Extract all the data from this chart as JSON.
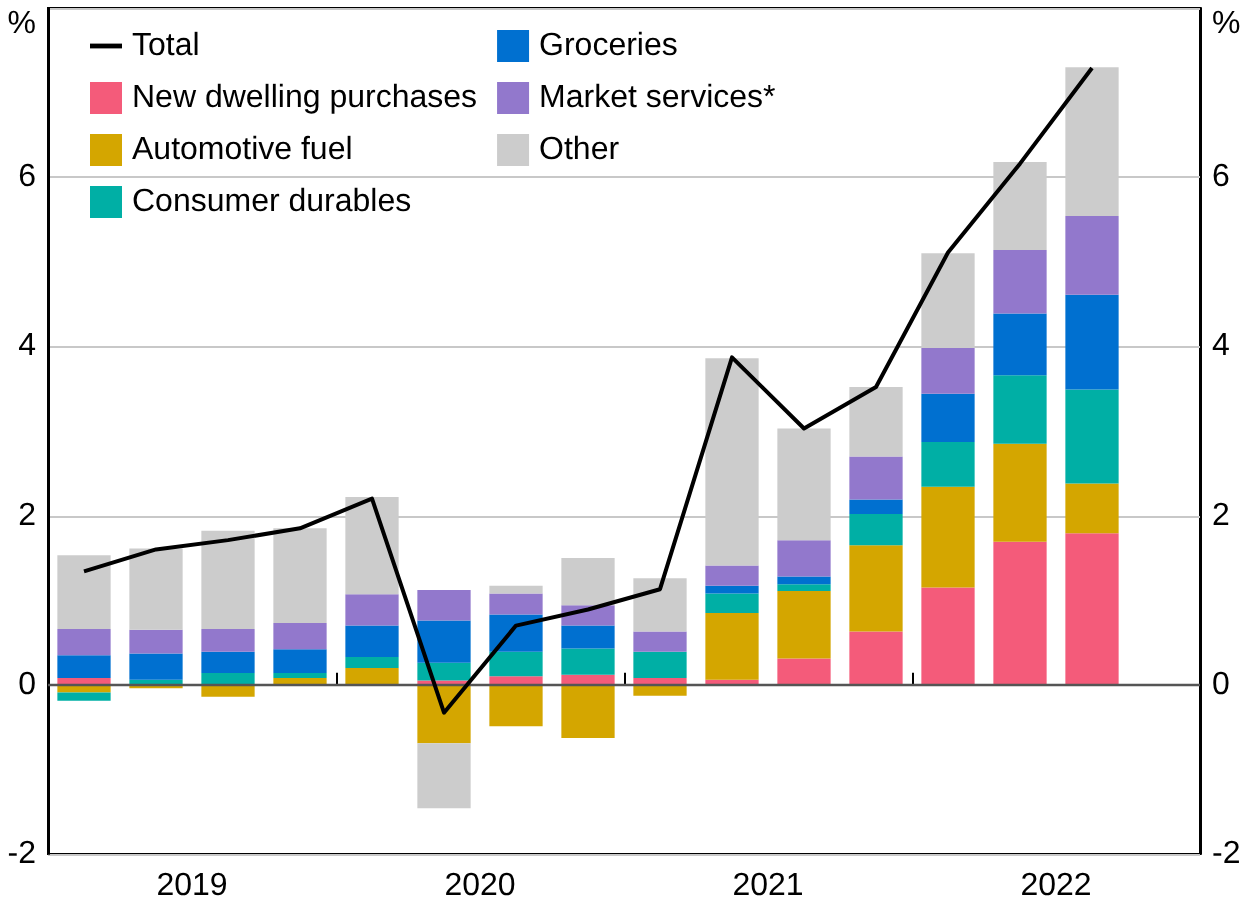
{
  "chart_data": {
    "type": "bar",
    "stacked": true,
    "ylabel": "%",
    "y2label": "%",
    "x": [
      2019.125,
      2019.375,
      2019.625,
      2019.875,
      2020.125,
      2020.375,
      2020.625,
      2020.875,
      2021.125,
      2021.375,
      2021.625,
      2021.875,
      2022.125,
      2022.375,
      2022.625
    ],
    "xlim": [
      2019,
      2023
    ],
    "xticks": [
      {
        "value": 2019,
        "label": null
      },
      {
        "value": 2019.5,
        "label": "2019"
      },
      {
        "value": 2020,
        "label": null
      },
      {
        "value": 2020.5,
        "label": "2020"
      },
      {
        "value": 2021,
        "label": null
      },
      {
        "value": 2021.5,
        "label": "2021"
      },
      {
        "value": 2022,
        "label": null
      },
      {
        "value": 2022.5,
        "label": "2022"
      },
      {
        "value": 2023,
        "label": null
      }
    ],
    "ylim": [
      -2,
      8
    ],
    "yticks": [
      -2,
      0,
      2,
      4,
      6
    ],
    "y2lim": [
      -2,
      8
    ],
    "y2ticks": [
      -2,
      0,
      2,
      4,
      6
    ],
    "series": [
      {
        "name": "Total",
        "type": "line",
        "color": "#000000",
        "values": [
          1.34,
          1.6,
          1.71,
          1.85,
          2.2,
          -0.33,
          0.7,
          0.89,
          1.13,
          3.87,
          3.03,
          3.52,
          5.11,
          6.16,
          7.29
        ]
      },
      {
        "name": "New dwelling purchases",
        "color": "#f45b7a",
        "values": [
          0.08,
          0,
          0,
          0,
          null,
          0.05,
          0.1,
          0.12,
          0.08,
          0.06,
          0.31,
          0.63,
          1.15,
          1.69,
          1.79
        ]
      },
      {
        "name": "Automotive fuel",
        "color": "#d4a600",
        "values": [
          -0.09,
          -0.04,
          -0.14,
          0.08,
          0.2,
          -0.69,
          -0.49,
          -0.63,
          -0.13,
          0.79,
          0.8,
          1.02,
          1.19,
          1.16,
          0.59
        ]
      },
      {
        "name": "Consumer durables",
        "color": "#00afa5",
        "values": [
          -0.1,
          0.06,
          0.14,
          0.06,
          0.13,
          0.21,
          0.29,
          0.31,
          0.31,
          0.23,
          0.08,
          0.37,
          0.53,
          0.81,
          1.11
        ]
      },
      {
        "name": "Groceries",
        "color": "#0070d0",
        "values": [
          0.27,
          0.31,
          0.25,
          0.28,
          0.37,
          0.5,
          0.44,
          0.27,
          0,
          0.09,
          0.09,
          0.17,
          0.57,
          0.73,
          1.12
        ]
      },
      {
        "name": "Market services*",
        "color": "#9278cc",
        "values": [
          0.31,
          0.28,
          0.27,
          0.31,
          0.37,
          0.36,
          0.25,
          0.24,
          0.24,
          0.24,
          0.43,
          0.51,
          0.54,
          0.75,
          0.93
        ]
      },
      {
        "name": "Other",
        "color": "#cccccc",
        "values": [
          0.87,
          0.96,
          1.16,
          1.12,
          1.15,
          -0.77,
          0.09,
          0.56,
          0.63,
          2.45,
          1.32,
          0.82,
          1.12,
          1.04,
          1.76
        ]
      }
    ],
    "ref_lines": [
      {
        "axis": "y",
        "value": 0,
        "color": "#555555"
      }
    ],
    "grid": "y",
    "legend": "top left"
  }
}
